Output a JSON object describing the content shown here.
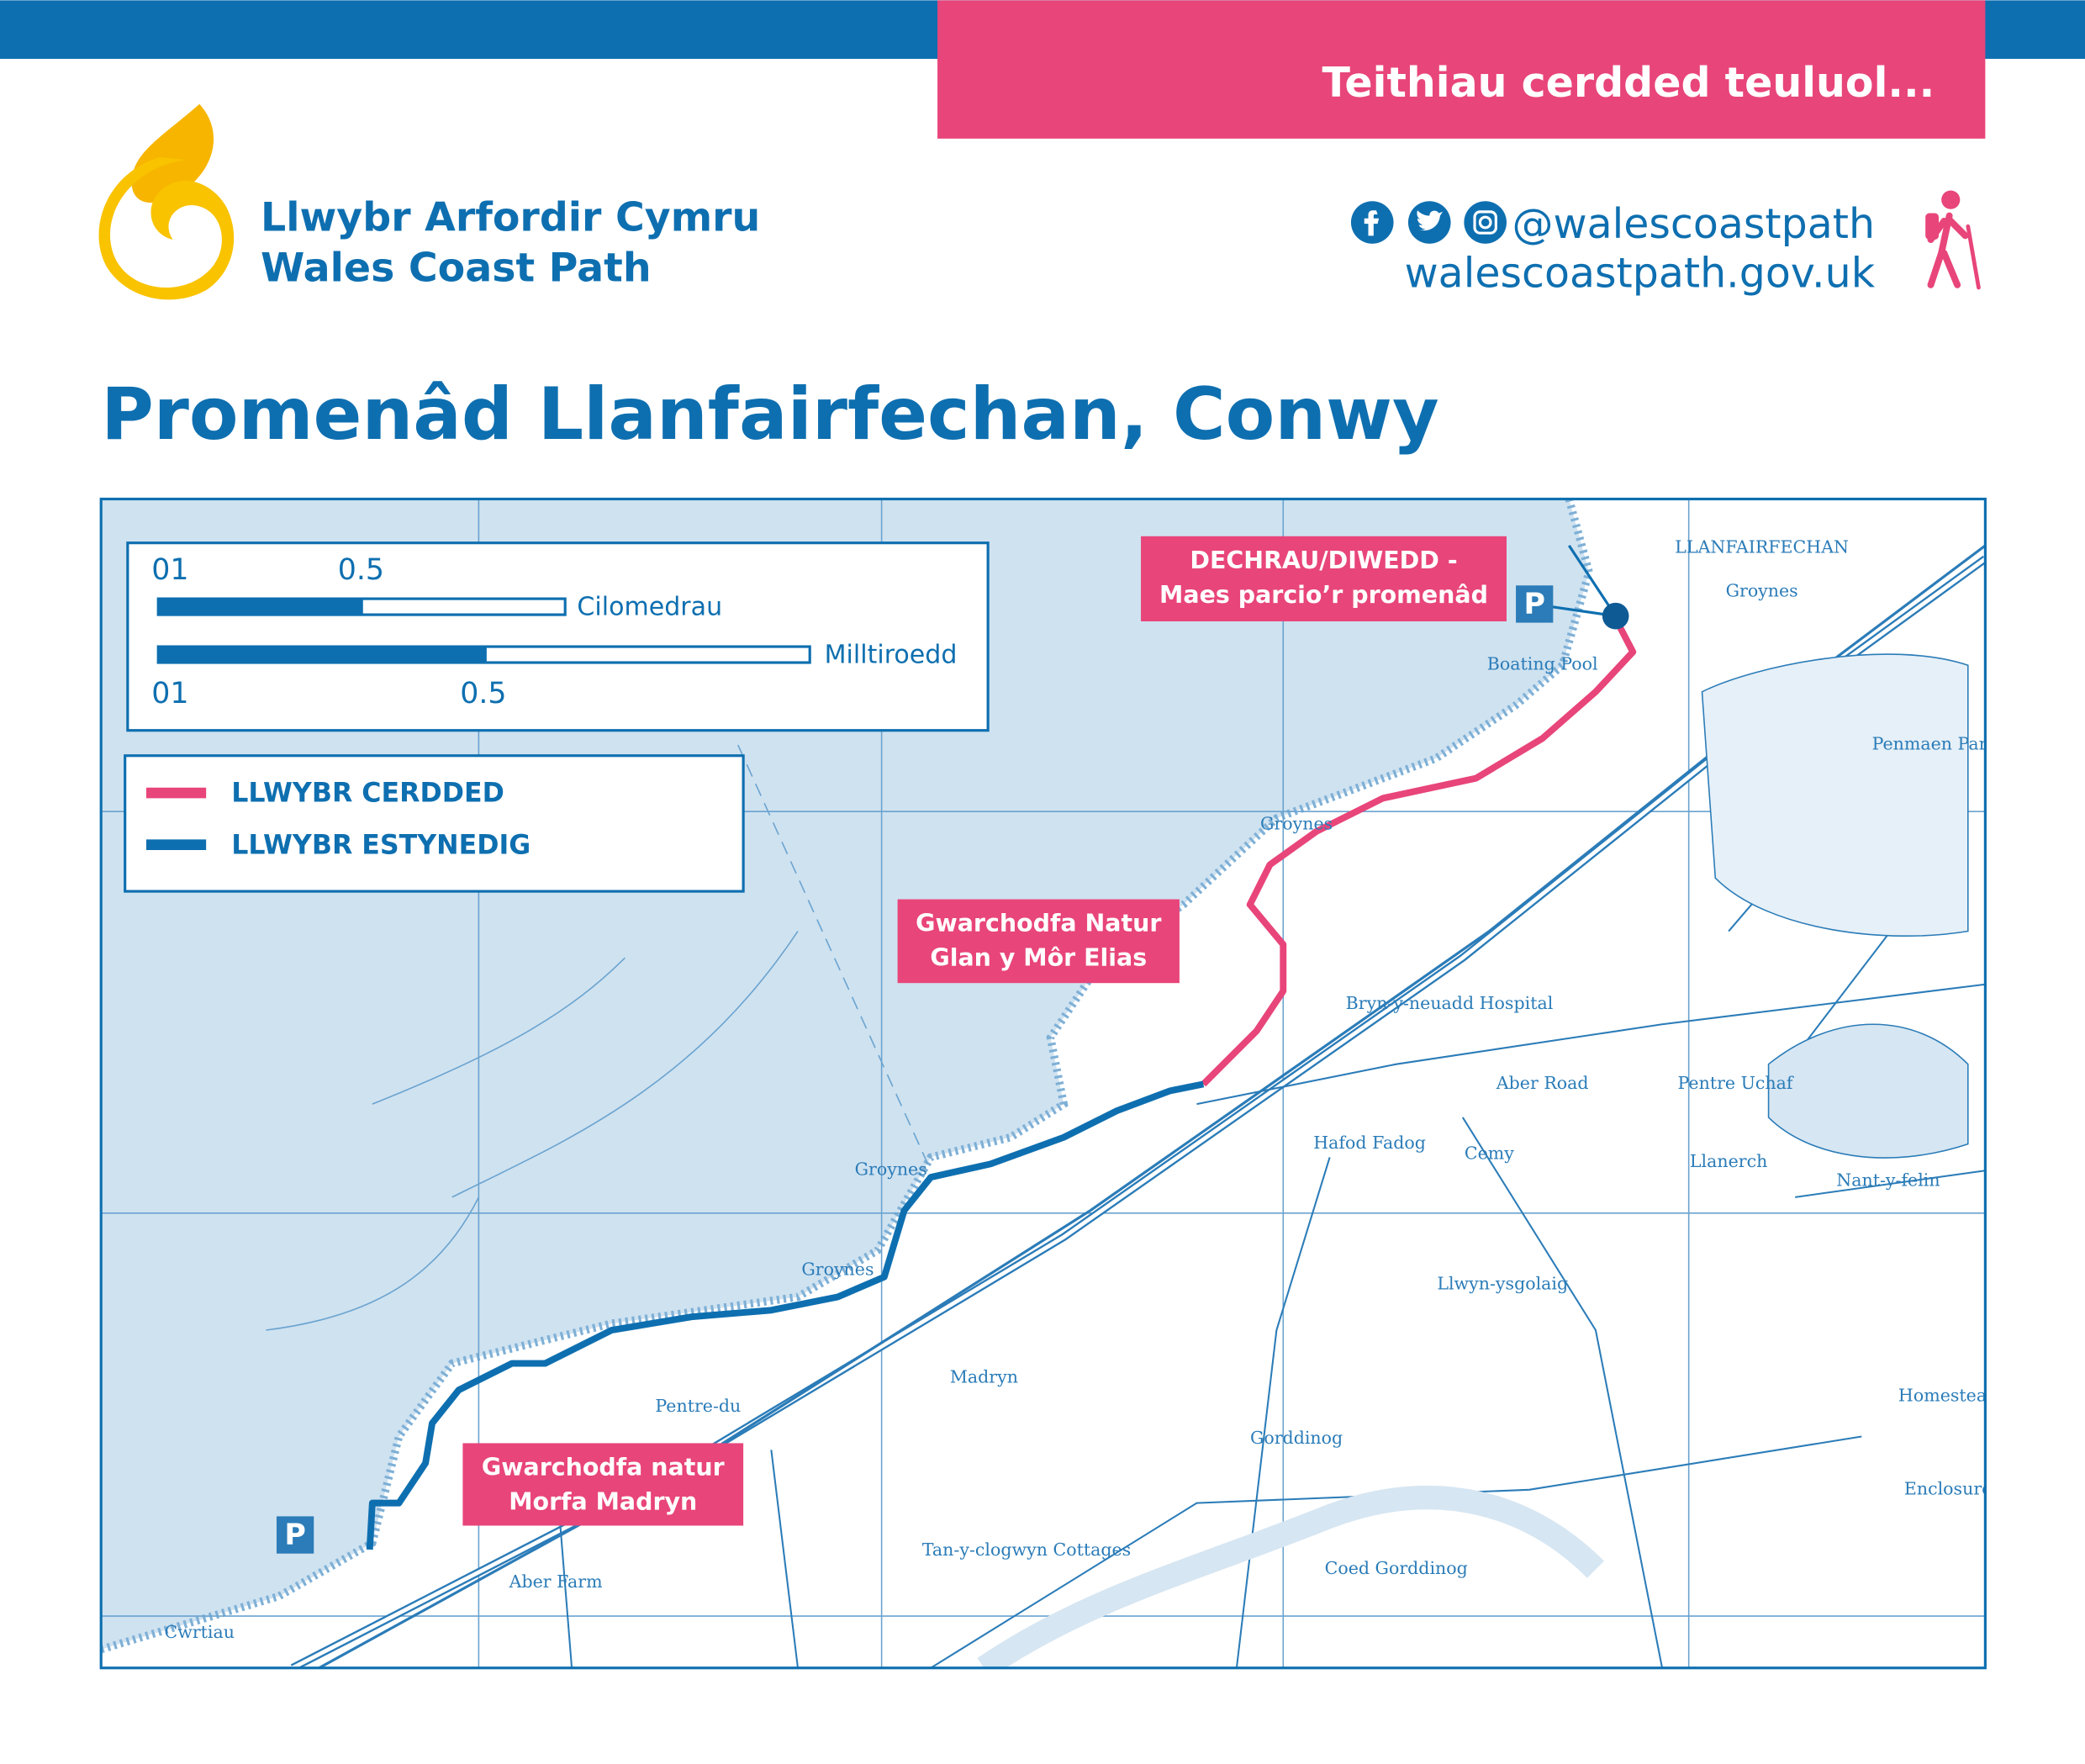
{
  "header": {
    "tagline": "Teithiau cerdded teuluol...",
    "logo_welsh": "Llwybr Arfordir Cymru",
    "logo_english": "Wales Coast Path",
    "social_handle": "@walescoastpath",
    "website": "walescoastpath.gov.uk"
  },
  "title": "Promenâd Llanfairfechan, Conwy",
  "scale": {
    "km_start": "01",
    "km_mid": "0.5",
    "km_label": "Cilomedrau",
    "mi_start": "01",
    "mi_mid": "0.5",
    "mi_label": "Milltiroedd"
  },
  "legend": {
    "walk": "LLWYBR CERDDED",
    "extended": "LLWYBR ESTYNEDIG"
  },
  "callouts": [
    {
      "lines": [
        "DECHRAU/DIWEDD -",
        "Maes parcio’r promenâd"
      ]
    },
    {
      "lines": [
        "Gwarchodfa Natur",
        "Glan y Môr Elias"
      ]
    },
    {
      "lines": [
        "Gwarchodfa natur",
        "Morfa Madryn"
      ]
    }
  ],
  "parking_label": "P",
  "map_labels": [
    "LLANFAIRFECHAN",
    "Groynes",
    "Boating Pool",
    "Groynes",
    "Groynes",
    "Groynes",
    "Bryn-y-neuadd Hospital",
    "Aber Road",
    "Pentre Uchaf",
    "Nant-y-felin",
    "Hafod Fadog",
    "Cemy",
    "Llwyn-ysgolaig",
    "Madryn",
    "Gorddinog",
    "Coed Gorddinog",
    "Pentre-du",
    "Aber Farm",
    "Cwrtiau",
    "Tan-y-clogwyn Cottages",
    "Llanerch",
    "Penmaen Park",
    "Homestead",
    "Enclosure"
  ]
}
